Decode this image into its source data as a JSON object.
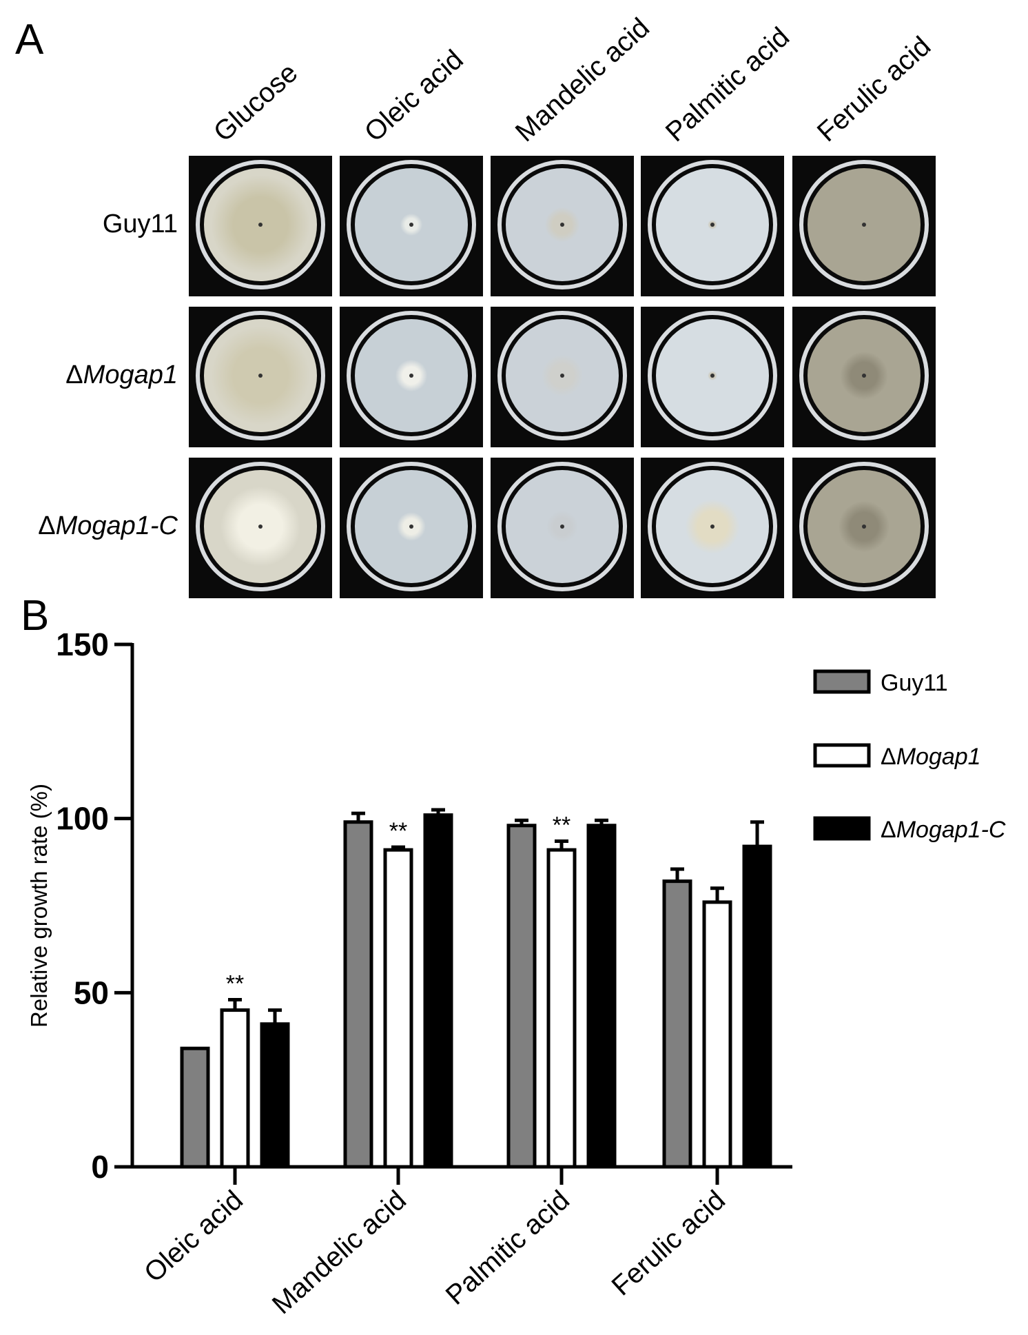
{
  "panel_a": {
    "letter": "A",
    "columns": [
      "Glucose",
      "Oleic acid",
      "Mandelic acid",
      "Palmitic acid",
      "Ferulic acid"
    ],
    "rows": [
      {
        "prefix": "",
        "name": "Guy11",
        "italic": false
      },
      {
        "prefix": "Δ",
        "name": "Mogap1",
        "italic": true
      },
      {
        "prefix": "Δ",
        "name": "Mogap1-C",
        "italic": true
      }
    ],
    "plate_colors": {
      "glucose": "#d8d6c8",
      "oleic": "#c7d0d6",
      "mandelic": "#cbd2d8",
      "palmitic": "#d6dde2",
      "ferulic": "#a9a593"
    }
  },
  "panel_b": {
    "letter": "B"
  },
  "chart_data": {
    "type": "bar",
    "ylabel": "Relative growth rate (%)",
    "ylim": [
      0,
      150
    ],
    "yticks": [
      0,
      50,
      100,
      150
    ],
    "categories": [
      "Oleic acid",
      "Mandelic acid",
      "Palmitic acid",
      "Ferulic acid"
    ],
    "series": [
      {
        "name": "Guy11",
        "prefix": "",
        "italic": false,
        "values": [
          34,
          99,
          98,
          82
        ],
        "errors": [
          0,
          2.5,
          1.5,
          3.5
        ],
        "color": "#808080"
      },
      {
        "name": "Mogap1",
        "prefix": "Δ",
        "italic": true,
        "values": [
          45,
          91,
          91,
          76
        ],
        "errors": [
          3,
          0.8,
          2.5,
          4
        ],
        "color": "#ffffff"
      },
      {
        "name": "Mogap1-C",
        "prefix": "Δ",
        "italic": true,
        "values": [
          41,
          101,
          98,
          92
        ],
        "errors": [
          4,
          1.5,
          1.5,
          7
        ],
        "color": "#000000"
      }
    ],
    "annotations": [
      {
        "category": 0,
        "series": 1,
        "text": "**"
      },
      {
        "category": 1,
        "series": 1,
        "text": "**"
      },
      {
        "category": 2,
        "series": 1,
        "text": "**"
      }
    ],
    "legend_position": "top-right"
  }
}
